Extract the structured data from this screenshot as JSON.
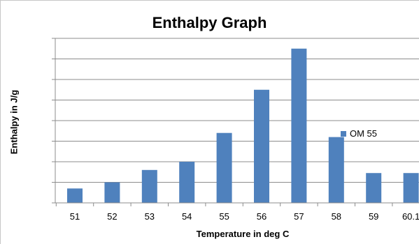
{
  "chart_data": {
    "type": "bar",
    "title": "Enthalpy Graph",
    "xlabel": "Temperature in deg C",
    "ylabel": "Enthalpy in J/g",
    "categories": [
      "51",
      "52",
      "53",
      "54",
      "55",
      "56",
      "57",
      "58",
      "59",
      "60.1"
    ],
    "series": [
      {
        "name": "OM 55",
        "values": [
          0.7,
          1.0,
          1.6,
          2.0,
          3.4,
          5.5,
          7.5,
          3.2,
          1.45,
          1.45
        ]
      }
    ],
    "ylim": [
      0,
      8
    ],
    "y_gridlines": 8,
    "grid": "horizontal",
    "y_tick_labels": "hidden",
    "legend": "right",
    "colors": {
      "bar": "#4f81bd",
      "grid": "#8c8c8c",
      "axis": "#8c8c8c"
    }
  }
}
